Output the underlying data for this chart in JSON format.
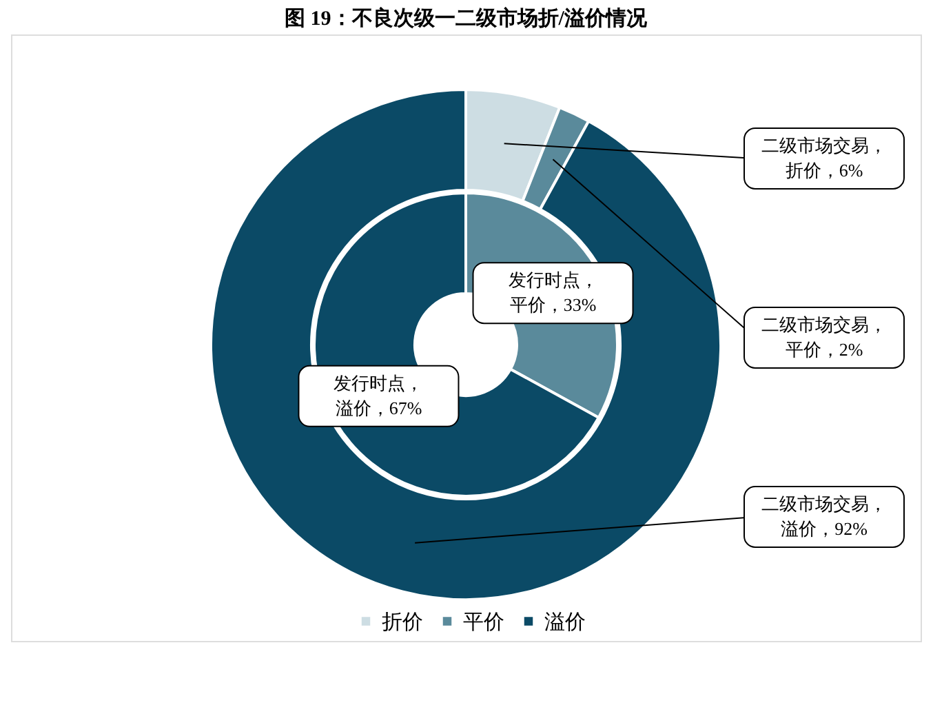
{
  "chart_data": {
    "type": "donut",
    "title": "图 19：不良次级一二级市场折/溢价情况",
    "categories": [
      "折价",
      "平价",
      "溢价"
    ],
    "legend": "bottom",
    "series": [
      {
        "values": [
          null,
          33,
          67
        ],
        "colors": [
          "#cddde3",
          "#5a8a9b",
          "#0b4a66"
        ],
        "value_labels": [
          null,
          "发行时点，平价，33%",
          "发行时点，溢价，67%"
        ]
      },
      {
        "values": [
          6,
          2,
          92
        ],
        "colors": [
          "#cddde3",
          "#5a8a9b",
          "#0b4a66"
        ],
        "value_labels": [
          "二级市场交易，折价，6%",
          "二级市场交易，平价，2%",
          "二级市场交易，溢价，92%"
        ]
      }
    ]
  }
}
